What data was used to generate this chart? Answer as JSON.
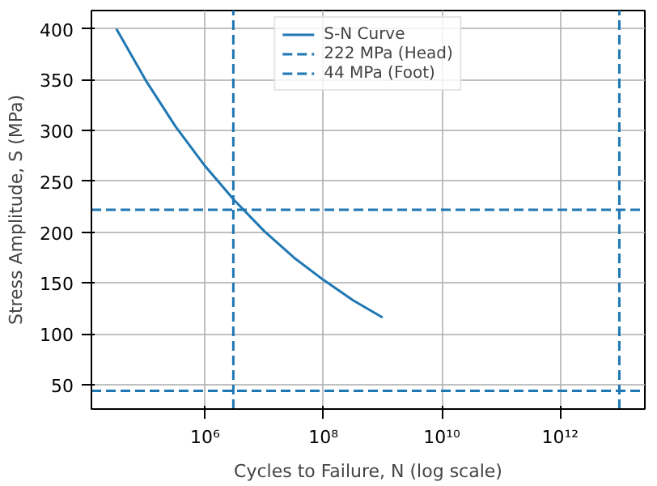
{
  "chart_data": {
    "type": "line",
    "xlabel": "Cycles to Failure, N (log scale)",
    "ylabel": "Stress Amplitude, S (MPa)",
    "x": [
      31623,
      100000,
      316228,
      1000000,
      3162278,
      10000000,
      31622777,
      100000000,
      316227766,
      1000000000
    ],
    "series": [
      {
        "name": "S-N Curve",
        "color": "#1f77b4",
        "values": [
          400,
          349,
          304,
          265,
          231,
          201,
          175,
          153,
          133,
          116
        ]
      }
    ],
    "ref_lines": [
      {
        "axis": "y",
        "value": 222,
        "label": "222 MPa (Head)",
        "color": "#1f77b4",
        "line_style": "dashed"
      },
      {
        "axis": "x",
        "value": 3000000,
        "color": "#1f77b4",
        "line_style": "dashed"
      },
      {
        "axis": "y",
        "value": 44,
        "label": "44 MPa (Foot)",
        "color": "#1f77b4",
        "line_style": "dashed"
      },
      {
        "axis": "x",
        "value": 10000000000000,
        "color": "#1f77b4",
        "line_style": "dashed"
      }
    ],
    "log": "x",
    "xlim": [
      12000,
      27000000000000
    ],
    "ylim": [
      26,
      418
    ],
    "xticks": [
      {
        "value": 1000000,
        "label": "10⁶"
      },
      {
        "value": 100000000,
        "label": "10⁸"
      },
      {
        "value": 10000000000,
        "label": "10¹⁰"
      },
      {
        "value": 1000000000000,
        "label": "10¹²"
      }
    ],
    "yticks": [
      50,
      100,
      150,
      200,
      250,
      300,
      350,
      400
    ],
    "grid": true,
    "legend": "top",
    "line_style": "solid",
    "marker": "none"
  }
}
